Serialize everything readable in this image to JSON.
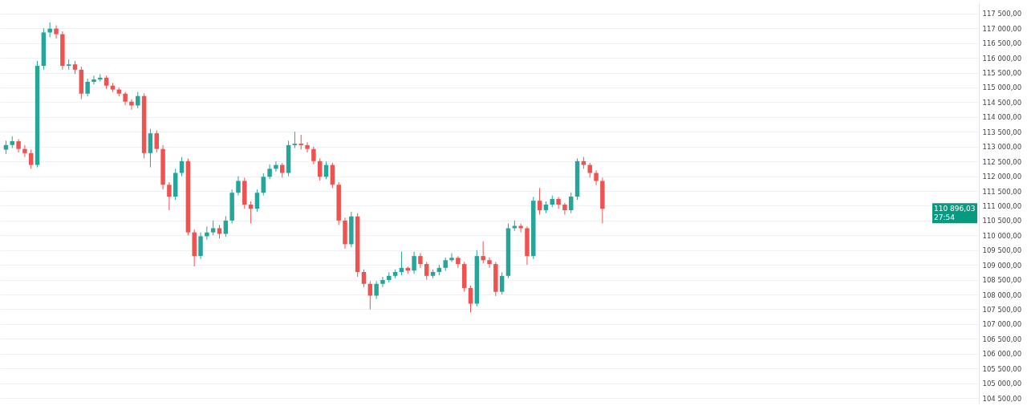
{
  "chart_data": {
    "type": "candlestick",
    "categories": [
      null,
      null,
      null,
      null,
      null,
      null,
      null,
      null,
      null,
      null,
      null,
      null,
      null,
      null,
      null,
      null,
      null,
      null,
      null,
      null,
      null,
      null,
      null,
      null,
      null,
      null,
      null,
      null,
      null,
      null,
      null,
      null,
      null,
      null,
      null,
      null,
      null,
      null,
      null,
      null,
      null,
      null,
      null,
      null,
      null,
      null,
      null,
      null,
      null,
      null,
      null,
      null,
      null,
      null,
      null,
      null,
      null,
      null,
      null,
      null,
      null,
      null,
      null,
      null,
      null,
      null,
      null,
      null,
      null,
      null,
      null,
      null,
      null,
      null,
      null,
      null,
      null,
      null,
      null,
      null,
      null,
      null,
      null,
      null,
      null,
      null,
      null,
      null,
      null,
      null,
      null,
      null,
      null,
      null,
      null,
      null,
      null,
      null,
      null,
      null,
      null,
      null,
      null,
      null,
      null,
      null,
      null,
      null,
      null,
      null,
      null,
      null,
      null,
      null,
      null,
      null,
      null,
      null,
      null,
      null,
      null,
      null,
      null,
      null,
      null,
      null,
      null,
      null,
      null,
      null,
      null,
      null,
      null,
      null,
      null,
      null,
      null,
      null,
      null,
      null,
      null,
      null,
      null,
      null,
      null,
      null,
      null,
      null,
      null,
      null,
      null,
      null,
      null,
      null,
      null
    ],
    "ohlc": [
      [
        112900,
        113200,
        112750,
        113050
      ],
      [
        113050,
        113350,
        112950,
        113180
      ],
      [
        113180,
        113250,
        112800,
        112920
      ],
      [
        112920,
        113050,
        112650,
        112780
      ],
      [
        112780,
        112900,
        112250,
        112380
      ],
      [
        112380,
        115900,
        112300,
        115730
      ],
      [
        115730,
        117000,
        115600,
        116860
      ],
      [
        116860,
        117200,
        116700,
        116990
      ],
      [
        116990,
        117100,
        116650,
        116800
      ],
      [
        116800,
        116900,
        115600,
        115730
      ],
      [
        115730,
        115950,
        115600,
        115780
      ],
      [
        115780,
        115900,
        115450,
        115600
      ],
      [
        115600,
        115700,
        114600,
        114790
      ],
      [
        114790,
        115300,
        114700,
        115190
      ],
      [
        115190,
        115400,
        115100,
        115270
      ],
      [
        115270,
        115450,
        115200,
        115330
      ],
      [
        115330,
        115400,
        114950,
        115060
      ],
      [
        115060,
        115150,
        114850,
        114930
      ],
      [
        114930,
        115000,
        114700,
        114790
      ],
      [
        114790,
        114850,
        114400,
        114520
      ],
      [
        114520,
        114600,
        114250,
        114390
      ],
      [
        114390,
        114850,
        114300,
        114710
      ],
      [
        114710,
        114800,
        112600,
        112780
      ],
      [
        112780,
        113600,
        112300,
        113450
      ],
      [
        113450,
        113550,
        112800,
        112920
      ],
      [
        112920,
        113050,
        111550,
        111710
      ],
      [
        111710,
        111800,
        110850,
        111310
      ],
      [
        111310,
        112250,
        111200,
        112110
      ],
      [
        112110,
        112650,
        112000,
        112510
      ],
      [
        112510,
        112600,
        110000,
        110100
      ],
      [
        110100,
        110200,
        108950,
        109300
      ],
      [
        109300,
        110100,
        109200,
        109970
      ],
      [
        109970,
        110300,
        109850,
        110100
      ],
      [
        110100,
        110500,
        110000,
        110240
      ],
      [
        110240,
        110350,
        109900,
        110050
      ],
      [
        110050,
        110650,
        109950,
        110500
      ],
      [
        110500,
        111550,
        110400,
        111440
      ],
      [
        111440,
        112000,
        111350,
        111840
      ],
      [
        111840,
        111950,
        110900,
        111040
      ],
      [
        111040,
        111150,
        110400,
        110900
      ],
      [
        110900,
        111550,
        110800,
        111440
      ],
      [
        111440,
        112100,
        111350,
        111980
      ],
      [
        111980,
        112400,
        111900,
        112250
      ],
      [
        112250,
        112500,
        112150,
        112380
      ],
      [
        112380,
        112450,
        111950,
        112110
      ],
      [
        112110,
        113200,
        112000,
        113050
      ],
      [
        113050,
        113500,
        112950,
        113100
      ],
      [
        113100,
        113400,
        112900,
        113050
      ],
      [
        113050,
        113150,
        112800,
        112920
      ],
      [
        112920,
        113000,
        112400,
        112510
      ],
      [
        112510,
        112600,
        111850,
        111980
      ],
      [
        111980,
        112500,
        111900,
        112380
      ],
      [
        112380,
        112450,
        111600,
        111710
      ],
      [
        111710,
        111800,
        110350,
        110500
      ],
      [
        110500,
        110600,
        109550,
        109700
      ],
      [
        109700,
        110800,
        109600,
        110640
      ],
      [
        110640,
        110750,
        108600,
        108760
      ],
      [
        108760,
        108850,
        108250,
        108360
      ],
      [
        108360,
        108450,
        107500,
        107960
      ],
      [
        107960,
        108450,
        107850,
        108360
      ],
      [
        108360,
        108600,
        108250,
        108490
      ],
      [
        108490,
        108750,
        108400,
        108630
      ],
      [
        108630,
        108850,
        108550,
        108760
      ],
      [
        108760,
        109450,
        108650,
        108900
      ],
      [
        108900,
        108950,
        108700,
        108810
      ],
      [
        108810,
        109450,
        108700,
        109300
      ],
      [
        109300,
        109400,
        108900,
        109030
      ],
      [
        109030,
        109100,
        108500,
        108630
      ],
      [
        108630,
        108850,
        108550,
        108760
      ],
      [
        108760,
        109000,
        108650,
        108900
      ],
      [
        108900,
        109250,
        108800,
        109160
      ],
      [
        109160,
        109400,
        109100,
        109240
      ],
      [
        109240,
        109300,
        108900,
        109030
      ],
      [
        109030,
        109100,
        108100,
        108220
      ],
      [
        108220,
        108300,
        107400,
        107690
      ],
      [
        107690,
        109500,
        107600,
        109300
      ],
      [
        109300,
        109800,
        109050,
        109160
      ],
      [
        109160,
        109250,
        108900,
        109030
      ],
      [
        109030,
        109100,
        107950,
        108090
      ],
      [
        108090,
        108750,
        108000,
        108630
      ],
      [
        108630,
        110400,
        108550,
        110240
      ],
      [
        110240,
        110500,
        110150,
        110320
      ],
      [
        110320,
        110400,
        110100,
        110240
      ],
      [
        110240,
        110300,
        109000,
        109300
      ],
      [
        109300,
        111300,
        109200,
        111170
      ],
      [
        111170,
        111600,
        110700,
        110850
      ],
      [
        110850,
        111150,
        110750,
        111040
      ],
      [
        111040,
        111350,
        110950,
        111230
      ],
      [
        111230,
        111300,
        110900,
        111040
      ],
      [
        111040,
        111100,
        110700,
        110850
      ],
      [
        110850,
        111450,
        110750,
        111310
      ],
      [
        111310,
        112600,
        111200,
        112510
      ],
      [
        112510,
        112650,
        112250,
        112380
      ],
      [
        112380,
        112450,
        111950,
        112110
      ],
      [
        112110,
        112200,
        111700,
        111840
      ],
      [
        111840,
        111950,
        110400,
        110896.03
      ],
      null,
      null,
      null,
      null,
      null,
      null,
      null,
      null,
      null,
      null,
      null,
      null,
      null,
      null,
      null,
      null,
      null,
      null,
      null,
      null,
      null,
      null,
      null,
      null,
      null,
      null,
      null,
      null,
      null,
      null,
      null,
      null,
      null,
      null,
      null,
      null,
      null,
      null,
      null,
      null,
      null,
      null,
      null,
      null,
      null,
      null,
      null,
      null,
      null,
      null,
      null,
      null,
      null,
      null,
      null,
      null,
      null,
      null,
      null
    ],
    "ylim": [
      104312,
      117875
    ],
    "yticks": [
      {
        "value": 104500,
        "label": "104 500,00"
      },
      {
        "value": 105000,
        "label": "105 000,00"
      },
      {
        "value": 105500,
        "label": "105 500,00"
      },
      {
        "value": 106000,
        "label": "106 000,00"
      },
      {
        "value": 106500,
        "label": "106 500,00"
      },
      {
        "value": 107000,
        "label": "107 000,00"
      },
      {
        "value": 107500,
        "label": "107 500,00"
      },
      {
        "value": 108000,
        "label": "108 000,00"
      },
      {
        "value": 108500,
        "label": "108 500,00"
      },
      {
        "value": 109000,
        "label": "109 000,00"
      },
      {
        "value": 109500,
        "label": "109 500,00"
      },
      {
        "value": 110000,
        "label": "110 000,00"
      },
      {
        "value": 110500,
        "label": "110 500,00"
      },
      {
        "value": 111000,
        "label": "111 000,00"
      },
      {
        "value": 111500,
        "label": "111 500,00"
      },
      {
        "value": 112000,
        "label": "112 000,00"
      },
      {
        "value": 112500,
        "label": "112 500,00"
      },
      {
        "value": 113000,
        "label": "113 000,00"
      },
      {
        "value": 113500,
        "label": "113 500,00"
      },
      {
        "value": 114000,
        "label": "114 000,00"
      },
      {
        "value": 114500,
        "label": "114 500,00"
      },
      {
        "value": 115000,
        "label": "115 000,00"
      },
      {
        "value": 115500,
        "label": "115 500,00"
      },
      {
        "value": 116000,
        "label": "116 000,00"
      },
      {
        "value": 116500,
        "label": "116 500,00"
      },
      {
        "value": 117000,
        "label": "117 000,00"
      },
      {
        "value": 117500,
        "label": "117 500,00"
      }
    ],
    "annotations": [
      "110 896,03",
      "27:54"
    ],
    "grid": "y",
    "tick_labels": "y"
  }
}
